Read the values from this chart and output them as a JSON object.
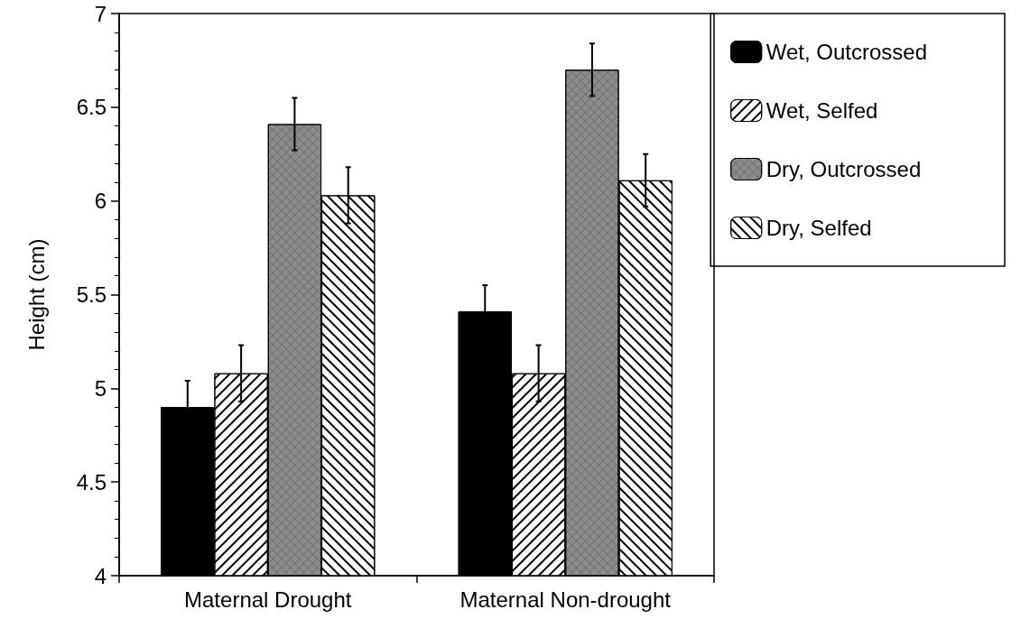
{
  "chart_data": {
    "type": "bar",
    "ylabel": "Height (cm)",
    "categories": [
      "Maternal Drought",
      "Maternal Non-drought"
    ],
    "series": [
      {
        "name": "Wet, Outcrossed",
        "color": "#000000",
        "values": [
          4.9,
          5.41
        ],
        "errors": [
          0.14,
          0.14
        ]
      },
      {
        "name": "Wet, Selfed",
        "color": "#ffffff",
        "values": [
          5.08,
          5.08
        ],
        "errors": [
          0.15,
          0.15
        ]
      },
      {
        "name": "Dry, Outcrossed",
        "color": "#8c8c8c",
        "values": [
          6.41,
          6.7
        ],
        "errors": [
          0.14,
          0.14
        ]
      },
      {
        "name": "Dry, Selfed",
        "color": "#ffffff",
        "values": [
          6.03,
          6.11
        ],
        "errors": [
          0.15,
          0.14
        ]
      }
    ],
    "ylim": [
      4,
      7
    ],
    "yticks": [
      4,
      4.5,
      5,
      5.5,
      6,
      6.5,
      7
    ],
    "grid": false,
    "legend": "right"
  }
}
